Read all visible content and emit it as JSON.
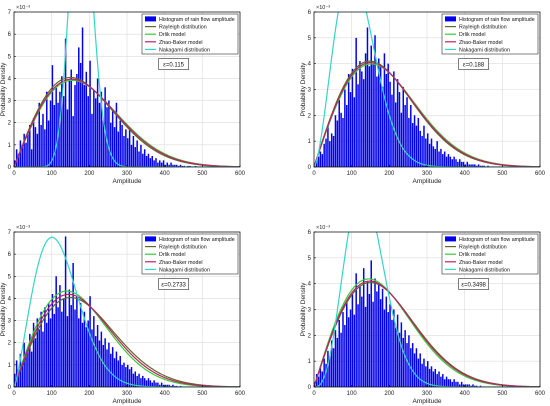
{
  "figure": {
    "background": "#ffffff",
    "axes_color": "#000000"
  },
  "chart_data": [
    {
      "type": "bar",
      "ylabel": "Probability Density",
      "xlabel": "Amplitude",
      "exponent_label": "×10⁻³",
      "xlim": [
        0,
        600
      ],
      "ylim": [
        0,
        7
      ],
      "xticks": [
        0,
        100,
        200,
        300,
        400,
        500,
        600
      ],
      "yticks": [
        0,
        1,
        2,
        3,
        4,
        5,
        6,
        7
      ],
      "grid": true,
      "legend_placement": "top-right",
      "annotation": "ε=0.115",
      "bin_width": 5,
      "bins_start": 0,
      "histogram_values": [
        0.3,
        0.8,
        0.6,
        1.2,
        1.0,
        1.5,
        1.1,
        1.6,
        1.9,
        0.8,
        2.2,
        1.8,
        1.5,
        2.9,
        1.9,
        2.4,
        1.7,
        3.4,
        2.1,
        3.0,
        4.6,
        2.8,
        3.6,
        2.9,
        3.4,
        4.1,
        3.2,
        5.8,
        2.6,
        3.9,
        4.4,
        2.3,
        3.7,
        4.2,
        5.4,
        4.7,
        6.3,
        3.7,
        4.3,
        3.2,
        4.8,
        2.4,
        3.5,
        3.1,
        4.0,
        2.9,
        3.4,
        2.1,
        3.6,
        2.7,
        3.0,
        2.0,
        2.6,
        1.8,
        2.9,
        1.6,
        2.1,
        1.9,
        1.4,
        1.7,
        1.3,
        1.8,
        1.0,
        1.4,
        0.9,
        1.2,
        0.7,
        1.0,
        0.6,
        0.8,
        0.5,
        0.6,
        0.4,
        0.5,
        0.3,
        0.4,
        0.2,
        0.3,
        0.2,
        0.3,
        0.1,
        0.2,
        0.1,
        0.2,
        0.1,
        0.1,
        0.1,
        0.05,
        0.1,
        0.05,
        0.05,
        0.0,
        0.05,
        0.05,
        0.0,
        0.0,
        0.05,
        0.0,
        0.0,
        0.0,
        0.0,
        0.0,
        0.0,
        0.0,
        0.0,
        0.0,
        0.0,
        0.0,
        0.0,
        0.0,
        0.0,
        0.0,
        0.0,
        0.0,
        0.0,
        0.0,
        0.0,
        0.0,
        0.0,
        0.0
      ],
      "series": [
        {
          "name": "Rayleigh distribution",
          "color": "#5a6a2a",
          "model": "rayleigh",
          "params": {
            "sigma": 150
          }
        },
        {
          "name": "Drlik model",
          "color": "#33cc33",
          "model": "rayleigh",
          "params": {
            "sigma": 155
          }
        },
        {
          "name": "Zhao-Baker model",
          "color": "#c0206a",
          "model": "rayleigh",
          "params": {
            "sigma": 153
          }
        },
        {
          "name": "Nakagami distribution",
          "color": "#33d6c8",
          "model": "nakagami",
          "params": {
            "m": 9.0,
            "omega": 33000
          }
        }
      ],
      "histogram_label": "Histogram of rain flow amplitude",
      "histogram_color": "#0000ee"
    },
    {
      "type": "bar",
      "ylabel": "Probability Density",
      "xlabel": "Amplitude",
      "exponent_label": "×10⁻³",
      "xlim": [
        0,
        600
      ],
      "ylim": [
        0,
        6
      ],
      "xticks": [
        0,
        100,
        200,
        300,
        400,
        500,
        600
      ],
      "yticks": [
        0,
        1,
        2,
        3,
        4,
        5,
        6
      ],
      "grid": true,
      "legend_placement": "top-right",
      "annotation": "ε=0.188",
      "bin_width": 5,
      "bins_start": 0,
      "histogram_values": [
        0.1,
        0.3,
        0.4,
        0.6,
        0.5,
        0.9,
        1.1,
        1.6,
        1.0,
        1.3,
        1.2,
        2.0,
        1.8,
        2.6,
        2.1,
        1.9,
        3.0,
        2.4,
        3.6,
        2.9,
        3.8,
        2.7,
        5.0,
        3.2,
        4.1,
        3.7,
        3.4,
        4.4,
        5.4,
        3.9,
        4.7,
        4.0,
        5.1,
        3.5,
        4.2,
        3.9,
        3.1,
        4.4,
        3.6,
        4.0,
        3.3,
        2.8,
        3.7,
        2.5,
        3.4,
        2.9,
        2.1,
        3.1,
        2.4,
        2.7,
        1.9,
        2.4,
        1.7,
        2.0,
        1.6,
        1.9,
        1.4,
        1.2,
        1.6,
        1.1,
        1.3,
        0.9,
        1.1,
        0.8,
        0.7,
        1.0,
        0.6,
        0.7,
        0.5,
        0.6,
        0.4,
        0.5,
        0.4,
        0.3,
        0.4,
        0.3,
        0.2,
        0.3,
        0.2,
        0.2,
        0.1,
        0.2,
        0.1,
        0.1,
        0.1,
        0.1,
        0.05,
        0.1,
        0.05,
        0.05,
        0.05,
        0.0,
        0.05,
        0.0,
        0.0,
        0.0,
        0.0,
        0.0,
        0.0,
        0.0,
        0.0,
        0.0,
        0.0,
        0.0,
        0.0,
        0.0,
        0.0,
        0.0,
        0.0,
        0.0,
        0.0,
        0.0,
        0.0,
        0.0,
        0.0,
        0.0,
        0.0,
        0.0,
        0.0,
        0.0
      ],
      "series": [
        {
          "name": "Rayleigh distribution",
          "color": "#5a6a2a",
          "model": "rayleigh",
          "params": {
            "sigma": 148
          }
        },
        {
          "name": "Drlik model",
          "color": "#33cc33",
          "model": "rayleigh",
          "params": {
            "sigma": 152
          }
        },
        {
          "name": "Zhao-Baker model",
          "color": "#c0206a",
          "model": "rayleigh",
          "params": {
            "sigma": 150
          }
        },
        {
          "name": "Nakagami distribution",
          "color": "#33d6c8",
          "model": "nakagami",
          "params": {
            "m": 1.3,
            "omega": 16000
          }
        }
      ],
      "histogram_label": "Histogram of rain flow amplitude",
      "histogram_color": "#0000ee"
    },
    {
      "type": "bar",
      "ylabel": "Probability Density",
      "xlabel": "Amplitude",
      "exponent_label": "×10⁻³",
      "xlim": [
        0,
        600
      ],
      "ylim": [
        0,
        7
      ],
      "xticks": [
        0,
        100,
        200,
        300,
        400,
        500,
        600
      ],
      "yticks": [
        0,
        1,
        2,
        3,
        4,
        5,
        6,
        7
      ],
      "grid": true,
      "legend_placement": "top-right",
      "annotation": "ε=0.2733",
      "bin_width": 5,
      "bins_start": 0,
      "histogram_values": [
        0.6,
        1.2,
        0.8,
        1.5,
        1.1,
        2.0,
        1.4,
        1.8,
        2.4,
        1.6,
        2.9,
        2.2,
        3.1,
        2.6,
        3.4,
        2.5,
        3.6,
        2.9,
        3.8,
        3.1,
        4.2,
        3.3,
        5.0,
        3.6,
        4.6,
        3.4,
        4.0,
        6.8,
        3.2,
        4.4,
        3.7,
        5.6,
        3.5,
        4.1,
        3.1,
        3.8,
        2.9,
        3.4,
        2.7,
        3.0,
        4.1,
        2.6,
        3.2,
        2.3,
        2.8,
        2.1,
        2.5,
        1.9,
        2.2,
        1.7,
        2.0,
        1.5,
        1.8,
        1.3,
        1.6,
        1.2,
        1.4,
        1.0,
        1.1,
        0.9,
        1.0,
        0.8,
        0.9,
        0.6,
        0.7,
        0.5,
        0.6,
        0.4,
        0.5,
        0.4,
        0.3,
        0.4,
        0.3,
        0.2,
        0.3,
        0.2,
        0.2,
        0.1,
        0.2,
        0.1,
        0.1,
        0.1,
        0.1,
        0.05,
        0.1,
        0.05,
        0.05,
        0.0,
        0.05,
        0.0,
        0.0,
        0.0,
        0.0,
        0.0,
        0.0,
        0.0,
        0.0,
        0.0,
        0.0,
        0.0,
        0.0,
        0.0,
        0.0,
        0.0,
        0.0,
        0.0,
        0.0,
        0.0,
        0.0,
        0.0,
        0.0,
        0.0,
        0.0,
        0.0,
        0.0,
        0.0,
        0.0,
        0.0,
        0.0,
        0.0
      ],
      "series": [
        {
          "name": "Rayleigh distribution",
          "color": "#5a6a2a",
          "model": "rayleigh",
          "params": {
            "sigma": 150
          }
        },
        {
          "name": "Drlik model",
          "color": "#33cc33",
          "model": "rayleigh",
          "params": {
            "sigma": 140
          }
        },
        {
          "name": "Zhao-Baker model",
          "color": "#c0206a",
          "model": "rayleigh",
          "params": {
            "sigma": 145
          }
        },
        {
          "name": "Nakagami distribution",
          "color": "#33d6c8",
          "model": "nakagami",
          "params": {
            "m": 1.15,
            "omega": 18000
          }
        }
      ],
      "histogram_label": "Histogram of rain flow amplitude",
      "histogram_color": "#0000ee"
    },
    {
      "type": "bar",
      "ylabel": "Probability Density",
      "xlabel": "Amplitude",
      "exponent_label": "×10⁻³",
      "xlim": [
        0,
        600
      ],
      "ylim": [
        0,
        6
      ],
      "xticks": [
        0,
        100,
        200,
        300,
        400,
        500,
        600
      ],
      "yticks": [
        0,
        1,
        2,
        3,
        4,
        5,
        6
      ],
      "grid": true,
      "legend_placement": "top-right",
      "annotation": "ε=0.3498",
      "bin_width": 5,
      "bins_start": 0,
      "histogram_values": [
        0.2,
        0.5,
        0.4,
        0.8,
        0.6,
        1.1,
        0.9,
        1.4,
        1.2,
        1.8,
        1.5,
        2.2,
        1.9,
        2.6,
        2.1,
        2.9,
        2.4,
        3.3,
        2.7,
        3.0,
        3.6,
        2.8,
        4.4,
        3.2,
        3.9,
        3.5,
        4.6,
        3.1,
        4.1,
        3.6,
        4.9,
        3.3,
        4.2,
        3.7,
        4.0,
        3.4,
        3.8,
        3.0,
        3.5,
        2.9,
        3.2,
        2.6,
        3.0,
        2.3,
        2.8,
        2.1,
        2.5,
        1.9,
        2.2,
        1.7,
        2.0,
        1.5,
        1.7,
        1.3,
        1.5,
        1.1,
        1.3,
        0.9,
        1.1,
        0.8,
        1.0,
        0.7,
        0.8,
        0.6,
        0.7,
        0.5,
        0.6,
        0.4,
        0.5,
        0.3,
        0.4,
        0.3,
        0.3,
        0.2,
        0.3,
        0.2,
        0.2,
        0.1,
        0.2,
        0.1,
        0.1,
        0.1,
        0.1,
        0.05,
        0.1,
        0.05,
        0.05,
        0.0,
        0.05,
        0.0,
        0.0,
        0.0,
        0.0,
        0.0,
        0.0,
        0.0,
        0.0,
        0.0,
        0.0,
        0.0,
        0.0,
        0.0,
        0.0,
        0.0,
        0.0,
        0.0,
        0.0,
        0.0,
        0.0,
        0.0,
        0.0,
        0.0,
        0.0,
        0.0,
        0.0,
        0.0,
        0.0,
        0.0,
        0.0,
        0.0
      ],
      "series": [
        {
          "name": "Rayleigh distribution",
          "color": "#5a6a2a",
          "model": "rayleigh",
          "params": {
            "sigma": 150
          }
        },
        {
          "name": "Drlik model",
          "color": "#33cc33",
          "model": "rayleigh",
          "params": {
            "sigma": 145
          }
        },
        {
          "name": "Zhao-Baker model",
          "color": "#c0206a",
          "model": "rayleigh",
          "params": {
            "sigma": 148
          }
        },
        {
          "name": "Nakagami distribution",
          "color": "#33d6c8",
          "model": "nakagami",
          "params": {
            "m": 1.9,
            "omega": 22000
          }
        }
      ],
      "histogram_label": "Histogram of rain flow amplitude",
      "histogram_color": "#0000ee"
    }
  ]
}
